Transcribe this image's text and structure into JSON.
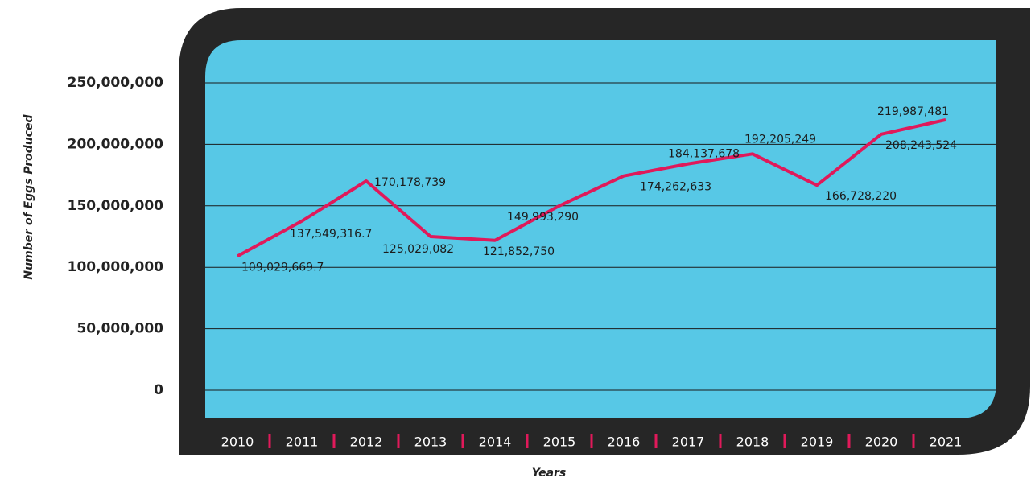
{
  "chart_data": {
    "type": "line",
    "x_label": "Years",
    "y_label": "Number of Eggs Produced",
    "categories": [
      "2010",
      "2011",
      "2012",
      "2013",
      "2014",
      "2015",
      "2016",
      "2017",
      "2018",
      "2019",
      "2020",
      "2021"
    ],
    "series": [
      {
        "name": "Eggs",
        "color": "#e0195a",
        "values": [
          109029669.7,
          137549316.7,
          170178739,
          125029082,
          121852750,
          149993290,
          174262633,
          184137678,
          192205249,
          166728220,
          208243524,
          219987481
        ],
        "value_labels": [
          "109,029,669.7",
          "137,549,316.7",
          "170,178,739",
          "125,029,082",
          "121,852,750",
          "149,993,290",
          "174,262,633",
          "184,137,678",
          "192,205,249",
          "166,728,220",
          "208,243,524",
          "219,987,481"
        ]
      }
    ],
    "ylim": [
      0,
      250000000
    ],
    "yticks": [
      {
        "value": 0,
        "label": "0"
      },
      {
        "value": 50000000,
        "label": "50,000,000"
      },
      {
        "value": 100000000,
        "label": "100,000,000"
      },
      {
        "value": 150000000,
        "label": "150,000,000"
      },
      {
        "value": 200000000,
        "label": "200,000,000"
      },
      {
        "value": 250000000,
        "label": "250,000,000"
      }
    ],
    "grid": true,
    "background": "#57c8e6"
  }
}
